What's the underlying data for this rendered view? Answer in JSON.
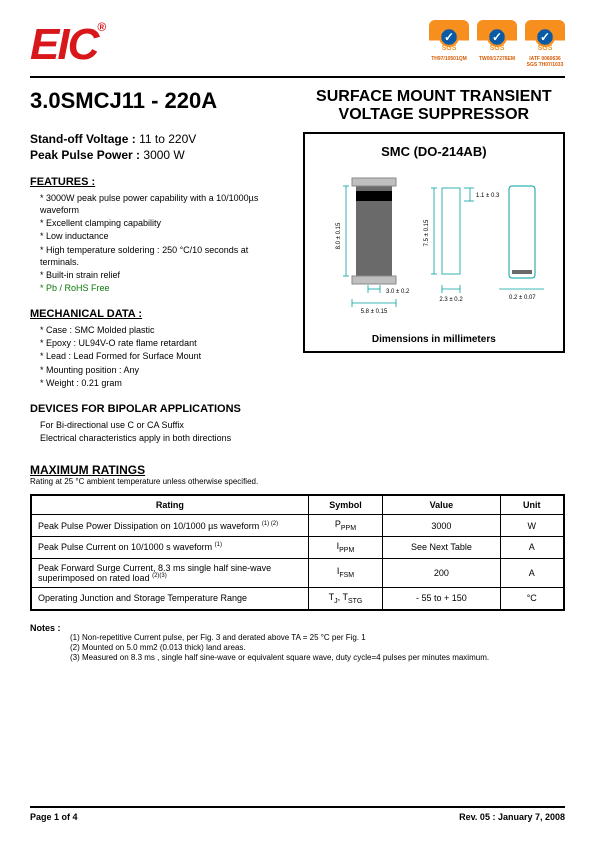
{
  "header": {
    "logo": "EIC",
    "certs": [
      {
        "label": "TH97/10501QM"
      },
      {
        "label": "TW00/17276EM"
      },
      {
        "label1": "IATF 0060636",
        "label2": "SGS TH07/1033"
      }
    ]
  },
  "partno": "3.0SMCJ11 - 220A",
  "title": "SURFACE MOUNT TRANSIENT VOLTAGE SUPPRESSOR",
  "standoff": {
    "label1": "Stand-off Voltage :",
    "val1": " 11 to 220V",
    "label2": "Peak Pulse Power :",
    "val2": " 3000 W"
  },
  "features": {
    "head": "FEATURES :",
    "items": [
      "* 3000W peak pulse power capability with a 10/1000µs  waveform",
      "* Excellent clamping capability",
      "* Low inductance",
      "* High temperature soldering : 250 °C/10 seconds at terminals.",
      "* Built-in strain relief",
      "* Pb / RoHS Free"
    ],
    "rohs_index": 5
  },
  "mech": {
    "head": "MECHANICAL DATA :",
    "items": [
      "*  Case :  SMC Molded plastic",
      "*  Epoxy : UL94V-O rate flame retardant",
      "*  Lead : Lead Formed for Surface Mount",
      "*  Mounting  position : Any",
      "*  Weight : 0.21 gram"
    ]
  },
  "bipolar": {
    "head": "DEVICES FOR BIPOLAR APPLICATIONS",
    "items": [
      "For Bi-directional use C or CA Suffix",
      "Electrical characteristics apply in both directions"
    ]
  },
  "diagram": {
    "title": "SMC (DO-214AB)",
    "dim_label": "Dimensions in millimeters",
    "dims": {
      "h1": "8.0 ± 0.15",
      "w1": "3.0  ± 0.2",
      "w2": "5.8  ± 0.15",
      "h2": "7.5 ± 0.15",
      "w3": "2.3 ± 0.2",
      "t1": "1.1 ± 0.3",
      "t2": "0.2 ± 0.07"
    },
    "colors": {
      "body": "#6a6a6a",
      "band": "#000000",
      "lead": "#bfbfbf",
      "line": "#00a0a0"
    }
  },
  "ratings": {
    "head": "MAXIMUM RATINGS",
    "sub": " Rating at 25 °C ambient temperature unless otherwise specified.",
    "cols": [
      "Rating",
      "Symbol",
      "Value",
      "Unit"
    ],
    "rows": [
      {
        "rating": "Peak Pulse Power Dissipation on 10/1000 µs waveform",
        "sup": "(1) (2)",
        "sym": "P",
        "sub": "PPM",
        "value": "3000",
        "unit": "W"
      },
      {
        "rating": "Peak Pulse Current on 10/1000 s waveform",
        "sup": "(1)",
        "sym": "I",
        "sub": "PPM",
        "value": "See Next Table",
        "unit": "A"
      },
      {
        "rating": "Peak Forward Surge Current, 8.3 ms single half sine-wave superimposed on rated load",
        "sup": "(2)(3)",
        "sym": "I",
        "sub": "FSM",
        "value": "200",
        "unit": "A"
      },
      {
        "rating": "Operating Junction and Storage Temperature Range",
        "sup": "",
        "sym": "T",
        "sub": "J",
        "sym2": ", T",
        "sub2": "STG",
        "value": "- 55 to + 150",
        "unit": "°C"
      }
    ]
  },
  "notes": {
    "head": "Notes :",
    "items": [
      "(1) Non-repetitive Current pulse, per Fig. 3 and derated above TA = 25 °C per Fig. 1",
      "(2) Mounted on 5.0 mm2 (0.013 thick) land areas.",
      "(3) Measured on 8.3 ms , single half sine-wave or equivalent square wave, duty cycle=4 pulses per minutes maximum."
    ]
  },
  "footer": {
    "page": "Page 1 of 4",
    "rev": "Rev. 05 : January 7, 2008"
  }
}
